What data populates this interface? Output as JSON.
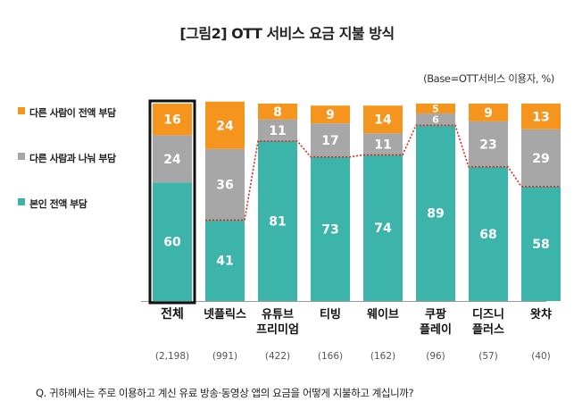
{
  "title": "[그림2] OTT 서비스 요금 지불 방식",
  "base_note": "(Base=OTT서비스 이용자, %)",
  "question": "Q. 귀하께서는 주로 이용하고 계신 유료 방송·동영상 앱의 요금을 어떻게 지불하고 계십니까?",
  "colors": {
    "self": "#3cb4a9",
    "split": "#a7a7a7",
    "other": "#f5951e",
    "highlight_border": "#111111",
    "dotted_line": "#e0261a"
  },
  "chart_data": {
    "type": "bar",
    "stacked": true,
    "ylim": [
      0,
      100
    ],
    "categories": [
      {
        "lines": [
          "전체"
        ],
        "n": "(2,198)",
        "highlight": true
      },
      {
        "lines": [
          "넷플릭스"
        ],
        "n": "(991)"
      },
      {
        "lines": [
          "유튜브",
          "프리미엄"
        ],
        "n": "(422)"
      },
      {
        "lines": [
          "티빙"
        ],
        "n": "(166)"
      },
      {
        "lines": [
          "웨이브"
        ],
        "n": "(162)"
      },
      {
        "lines": [
          "쿠팡",
          "플레이"
        ],
        "n": "(96)"
      },
      {
        "lines": [
          "디즈니",
          "플러스"
        ],
        "n": "(57)"
      },
      {
        "lines": [
          "왓챠"
        ],
        "n": "(40)"
      }
    ],
    "series": [
      {
        "name": "본인 전액 부담",
        "key": "self",
        "values": [
          60,
          41,
          81,
          73,
          74,
          89,
          68,
          58
        ]
      },
      {
        "name": "다른 사람과 나눠 부담",
        "key": "split",
        "values": [
          24,
          36,
          11,
          17,
          11,
          6,
          23,
          29
        ]
      },
      {
        "name": "다른 사람이 전액 부담",
        "key": "other",
        "values": [
          16,
          24,
          8,
          9,
          14,
          5,
          9,
          13
        ]
      }
    ],
    "legend": [
      "다른 사람이 전액 부담",
      "다른 사람과 나눠 부담",
      "본인 전액 부담"
    ]
  }
}
